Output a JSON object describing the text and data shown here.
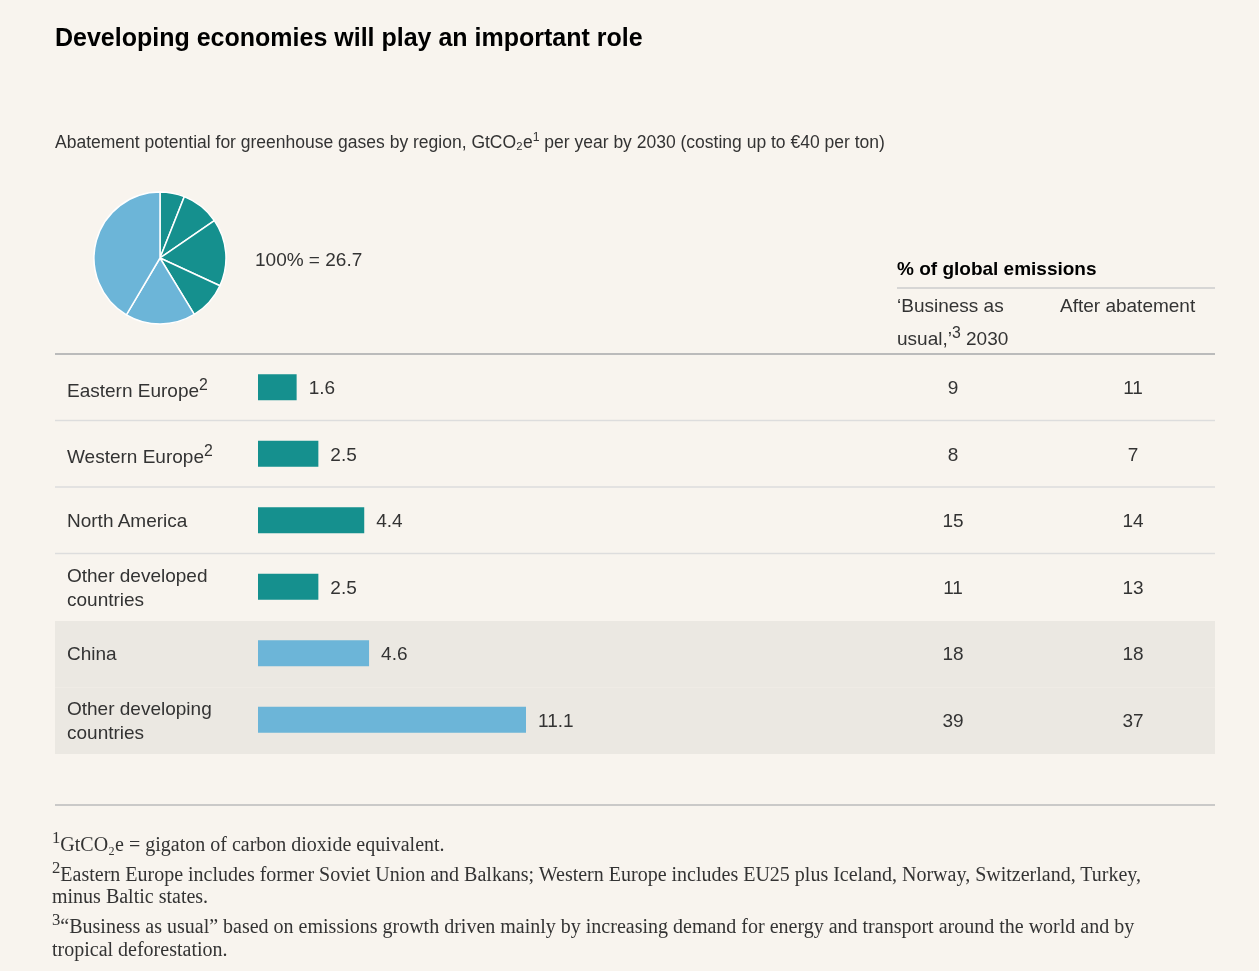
{
  "chart_data": [
    {
      "type": "pie",
      "title": "Developing economies will play an important role",
      "subtitle": "Abatement potential for greenhouse gases by region, GtCO₂e$^{1}$ per year by 2030 (costing up to €40 per ton)",
      "categories": [
        null,
        null,
        null,
        null,
        null,
        null
      ],
      "values": [
        6.0,
        9.4,
        16.5,
        9.4,
        17.2,
        41.5
      ],
      "colors": [
        "#15908e",
        "#15908e",
        "#15908e",
        "#15908e",
        "#6cb5d8",
        "#6cb5d8"
      ],
      "annotations": [
        "100% = 26.7"
      ]
    },
    {
      "type": "bar",
      "orientation": "horizontal",
      "categories": [
        "Eastern Europe$^{2}$",
        "Western Europe$^{2}$",
        "North America",
        "Other developed countries",
        "China",
        "Other developing countries"
      ],
      "values": [
        1.6,
        2.5,
        4.4,
        2.5,
        4.6,
        11.1
      ],
      "colors": [
        "#15908e",
        "#15908e",
        "#15908e",
        "#15908e",
        "#6cb5d8",
        "#6cb5d8"
      ],
      "data_labels": true,
      "annotations": [
        "$^{1}$GtCO₂e = gigaton of carbon dioxide equivalent.",
        "$^{2}$Eastern Europe includes former Soviet Union and Balkans; Western Europe includes EU25 plus Iceland, Norway, Switzerland, Turkey, minus Baltic states.",
        "$^{3}$“Business as usual” based on emissions growth driven mainly by increasing demand for energy and transport around the world and by tropical deforestation."
      ]
    },
    {
      "type": "heatmap",
      "title": "% of global emissions",
      "categories": [
        "‘Business as usual,’$^{3}$ 2030",
        "After abatement"
      ],
      "y_categories": [
        null,
        null,
        null,
        null,
        null,
        null
      ],
      "cells": [
        [
          9,
          11
        ],
        [
          8,
          7
        ],
        [
          15,
          14
        ],
        [
          11,
          13
        ],
        [
          18,
          18
        ],
        [
          39,
          37
        ]
      ],
      "data_labels": true
    }
  ]
}
